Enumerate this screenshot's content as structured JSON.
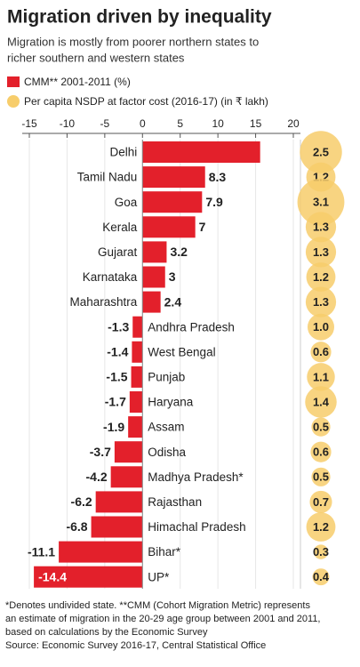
{
  "chart_data": {
    "type": "bar",
    "orientation": "horizontal",
    "title": "Migration driven by inequality",
    "subtitle": [
      "Migration is mostly from poorer northern states to",
      "richer southern and western states"
    ],
    "categories": [
      "Delhi",
      "Tamil Nadu",
      "Goa",
      "Kerala",
      "Gujarat",
      "Karnataka",
      "Maharashtra",
      "Andhra Pradesh",
      "West Bengal",
      "Punjab",
      "Haryana",
      "Assam",
      "Odisha",
      "Madhya Pradesh*",
      "Rajasthan",
      "Himachal Pradesh",
      "Bihar*",
      "UP*"
    ],
    "series": [
      {
        "name": "CMM** 2001-2011 (%)",
        "type": "bar",
        "color": "#e3202b",
        "values": [
          15.6,
          8.3,
          7.9,
          7,
          3.2,
          3,
          2.4,
          -1.3,
          -1.4,
          -1.5,
          -1.7,
          -1.9,
          -3.7,
          -4.2,
          -6.2,
          -6.8,
          -11.1,
          -14.4
        ]
      },
      {
        "name": "Per capita NSDP at factor cost (2016-17) (in ₹ lakh)",
        "type": "bubble",
        "color": "#f7cd6b",
        "values": [
          2.5,
          1.2,
          3.1,
          1.3,
          1.3,
          1.2,
          1.3,
          1,
          0.6,
          1.1,
          1.4,
          0.5,
          0.6,
          0.5,
          0.7,
          1.2,
          0.3,
          0.4
        ],
        "value_labels": [
          "2.5",
          "1.2",
          "3.1",
          "1.3",
          "1.3",
          "1.2",
          "1.3",
          "1.0",
          "0.6",
          "1.1",
          "1.4",
          "0.5",
          "0.6",
          "0.5",
          "0.7",
          "1.2",
          "0.3",
          "0.4"
        ]
      }
    ],
    "xlim": [
      -15,
      20
    ],
    "xticks": [
      -15,
      -10,
      -5,
      0,
      5,
      10,
      15,
      20
    ],
    "grid": true,
    "footnote": [
      "*Denotes undivided state.  **CMM (Cohort Migration Metric) represents",
      "an estimate of migration in the 20-29 age group between 2001 and 2011,",
      "based on calculations by the Economic Survey",
      "Source: Economic Survey 2016-17, Central Statistical Office"
    ]
  }
}
